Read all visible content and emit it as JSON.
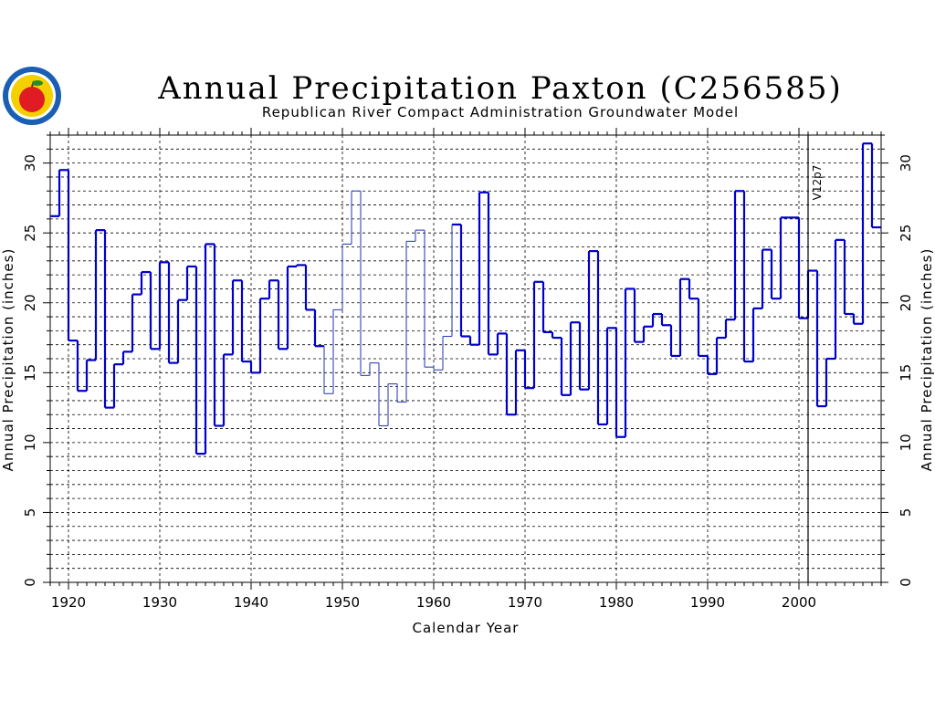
{
  "chart_data": {
    "type": "line",
    "style": "step",
    "title": "Annual Precipitation Paxton (C256585)",
    "subtitle": "Republican River Compact Administration Groundwater Model",
    "xlabel": "Calendar Year",
    "ylabel": "Annual Precipitation (inches)",
    "ylabel_right": "Annual Precipitation (inches)",
    "xlim": [
      1918,
      2009
    ],
    "ylim": [
      0,
      32
    ],
    "x_ticks": [
      "1920",
      "1930",
      "1940",
      "1950",
      "1960",
      "1970",
      "1980",
      "1990",
      "2000"
    ],
    "x_tick_values": [
      1920,
      1930,
      1940,
      1950,
      1960,
      1970,
      1980,
      1990,
      2000
    ],
    "y_ticks": [
      "0",
      "5",
      "10",
      "15",
      "20",
      "25",
      "30"
    ],
    "y_tick_values": [
      0,
      5,
      10,
      15,
      20,
      25,
      30
    ],
    "grid": true,
    "series_color": "#0000cc",
    "thin_color": "#3344bb",
    "annotation": {
      "text": "V12p7",
      "x": 2001
    },
    "x": [
      1918,
      1919,
      1920,
      1921,
      1922,
      1923,
      1924,
      1925,
      1926,
      1927,
      1928,
      1929,
      1930,
      1931,
      1932,
      1933,
      1934,
      1935,
      1936,
      1937,
      1938,
      1939,
      1940,
      1941,
      1942,
      1943,
      1944,
      1945,
      1946,
      1947,
      1948,
      1949,
      1950,
      1951,
      1952,
      1953,
      1954,
      1955,
      1956,
      1957,
      1958,
      1959,
      1960,
      1961,
      1962,
      1963,
      1964,
      1965,
      1966,
      1967,
      1968,
      1969,
      1970,
      1971,
      1972,
      1973,
      1974,
      1975,
      1976,
      1977,
      1978,
      1979,
      1980,
      1981,
      1982,
      1983,
      1984,
      1985,
      1986,
      1987,
      1988,
      1989,
      1990,
      1991,
      1992,
      1993,
      1994,
      1995,
      1996,
      1997,
      1998,
      1999,
      2000,
      2001,
      2002,
      2003,
      2004,
      2005,
      2006,
      2007,
      2008
    ],
    "values": [
      26.2,
      29.5,
      17.3,
      13.7,
      15.9,
      25.2,
      12.5,
      15.6,
      16.5,
      20.6,
      22.2,
      16.7,
      22.9,
      15.7,
      20.2,
      22.6,
      9.2,
      24.2,
      11.2,
      16.3,
      21.6,
      15.8,
      15.0,
      20.3,
      21.6,
      16.7,
      22.6,
      22.7,
      19.5,
      16.9,
      13.5,
      19.5,
      24.2,
      28.0,
      14.8,
      15.7,
      11.2,
      14.2,
      12.9,
      24.4,
      25.2,
      15.4,
      15.2,
      17.6,
      25.6,
      17.6,
      17.0,
      27.9,
      16.3,
      17.8,
      12.0,
      16.6,
      13.9,
      21.5,
      17.9,
      17.5,
      13.4,
      18.6,
      13.8,
      23.7,
      11.3,
      18.2,
      10.4,
      21.0,
      17.2,
      18.3,
      19.2,
      18.4,
      16.2,
      21.7,
      20.3,
      16.2,
      14.9,
      17.5,
      18.8,
      28.0,
      15.8,
      19.6,
      23.8,
      20.3,
      26.1,
      26.1,
      18.9,
      22.3,
      12.6,
      16.0,
      24.5,
      19.2,
      18.5,
      31.4,
      25.4
    ],
    "thin_segments": [
      [
        1948,
        1953
      ],
      [
        1953,
        1962
      ]
    ]
  },
  "logo": {
    "name": "rrca-apple-seal",
    "ring_color": "#1a5fb4",
    "fill_color": "#f5d000",
    "apple_color": "#e01b24",
    "leaf_color": "#2a8a2a"
  }
}
